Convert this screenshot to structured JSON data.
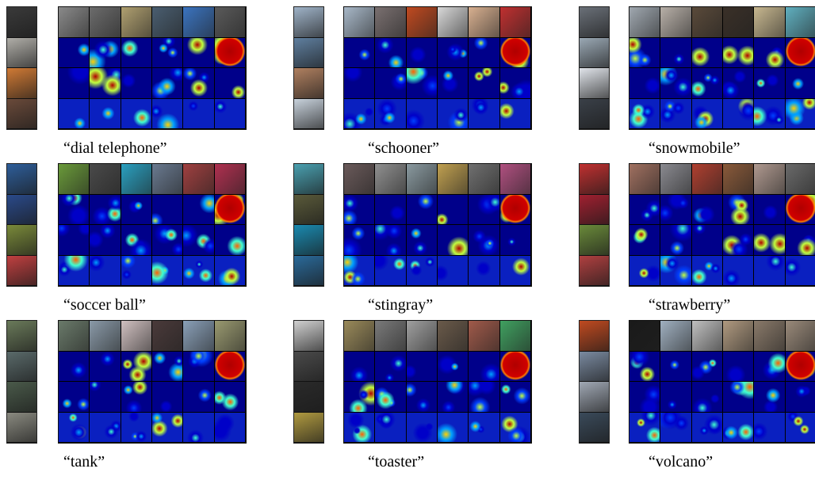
{
  "figure": {
    "panels": [
      {
        "label": "“dial telephone”",
        "photo_tint": [
          "#3a3a3a",
          "#b0aea8",
          "#d07a35",
          "#6a4a3a"
        ],
        "top_tint": [
          "#8a8a8a",
          "#6c6c6c",
          "#b0a070",
          "#4a5e70",
          "#3b74c0",
          "#5a5a5a"
        ]
      },
      {
        "label": "“schooner”",
        "photo_tint": [
          "#9fb3c8",
          "#5f7f9f",
          "#b08060",
          "#c8d2dc"
        ],
        "top_tint": [
          "#a8b8c8",
          "#7a7070",
          "#c04a20",
          "#d8d8d8",
          "#d8b090",
          "#c03030"
        ]
      },
      {
        "label": "“snowmobile”",
        "photo_tint": [
          "#6a7078",
          "#9aa8b4",
          "#e0e4ea",
          "#3a4048"
        ],
        "top_tint": [
          "#a0a8b0",
          "#b8b0a8",
          "#5a4a3a",
          "#3a3028",
          "#c8b890",
          "#60b0c0"
        ]
      },
      {
        "label": "“soccer ball”",
        "photo_tint": [
          "#2e5e9a",
          "#2a4a8a",
          "#7a8a3a",
          "#c04040"
        ],
        "top_tint": [
          "#6a9a3a",
          "#4a4a4a",
          "#2aa0c0",
          "#6a7a90",
          "#a04040",
          "#b03050"
        ]
      },
      {
        "label": "“stingray”",
        "photo_tint": [
          "#4aa0b0",
          "#5a5a3a",
          "#1a8ab0",
          "#2a6a9a"
        ],
        "top_tint": [
          "#6a5a5a",
          "#909090",
          "#8a9aa0",
          "#c0a050",
          "#707070",
          "#b05080"
        ]
      },
      {
        "label": "“strawberry”",
        "photo_tint": [
          "#c03030",
          "#a02030",
          "#6a8a3a",
          "#b04040"
        ],
        "top_tint": [
          "#a07060",
          "#8a8a90",
          "#b04030",
          "#8a5a3a",
          "#b09a90",
          "#6a6a6a"
        ]
      },
      {
        "label": "“tank”",
        "photo_tint": [
          "#6a7a5a",
          "#5a6a6a",
          "#4a5a4a",
          "#8a8a80"
        ],
        "top_tint": [
          "#6a7a6a",
          "#8a9aa8",
          "#d0c0c0",
          "#4a3a3a",
          "#8aa0b8",
          "#9a9a70"
        ]
      },
      {
        "label": "“toaster”",
        "photo_tint": [
          "#d0d0d0",
          "#4a4a4a",
          "#2a2a2a",
          "#b09a40"
        ],
        "top_tint": [
          "#9a8a5a",
          "#7a7a7a",
          "#a0a0a0",
          "#6a5a4a",
          "#a05a4a",
          "#40a060"
        ]
      },
      {
        "label": "“volcano”",
        "photo_tint": [
          "#c04a20",
          "#7a8aa0",
          "#a0a8b4",
          "#3a4a5a"
        ],
        "top_tint": [
          "#1a1a1a",
          "#a0b0c0",
          "#c0c0c0",
          "#b09a80",
          "#8a7a6a",
          "#9a8a7a"
        ]
      }
    ]
  }
}
